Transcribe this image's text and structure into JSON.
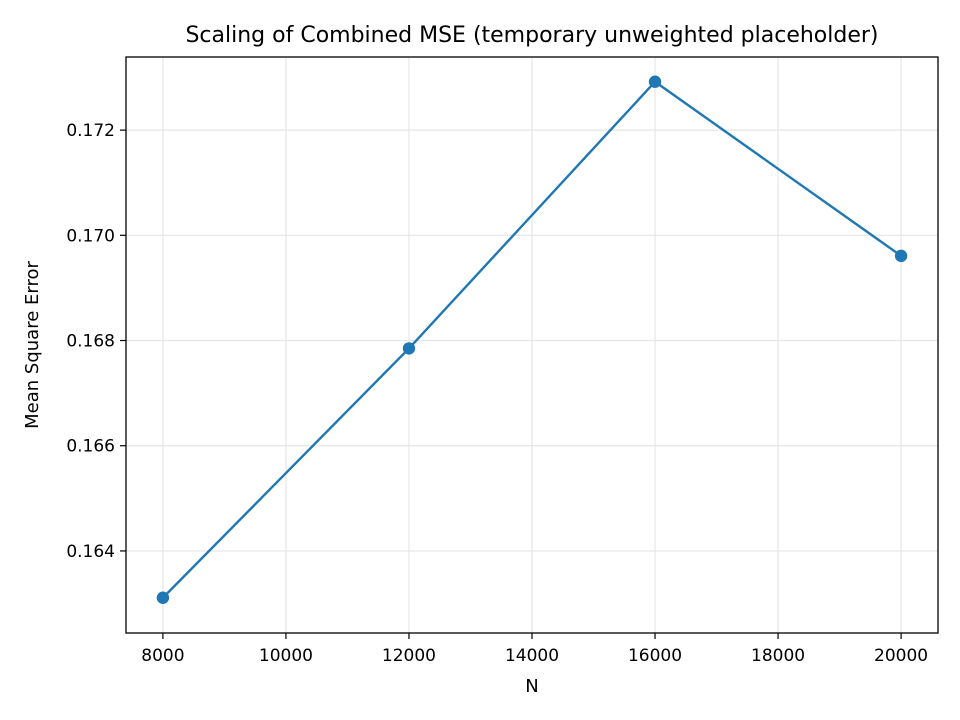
{
  "chart_data": {
    "type": "line",
    "title": "Scaling of Combined MSE (temporary unweighted placeholder)",
    "xlabel": "N",
    "ylabel": "Mean Square Error",
    "x": [
      8000,
      12000,
      16000,
      20000
    ],
    "series": [
      {
        "values": [
          0.16311,
          0.16785,
          0.17292,
          0.16961
        ]
      }
    ],
    "xlim": [
      7400,
      20600
    ],
    "ylim": [
      0.16244,
      0.17339
    ],
    "xticks": [
      8000,
      10000,
      12000,
      14000,
      16000,
      18000,
      20000
    ],
    "xtick_labels": [
      "8000",
      "10000",
      "12000",
      "14000",
      "16000",
      "18000",
      "20000"
    ],
    "yticks": [
      0.164,
      0.166,
      0.168,
      0.17,
      0.172
    ],
    "ytick_labels": [
      "0.164",
      "0.166",
      "0.168",
      "0.170",
      "0.172"
    ],
    "grid": true,
    "markers": true,
    "line_color": "#1f77b4",
    "grid_color": "#e6e6e6"
  }
}
